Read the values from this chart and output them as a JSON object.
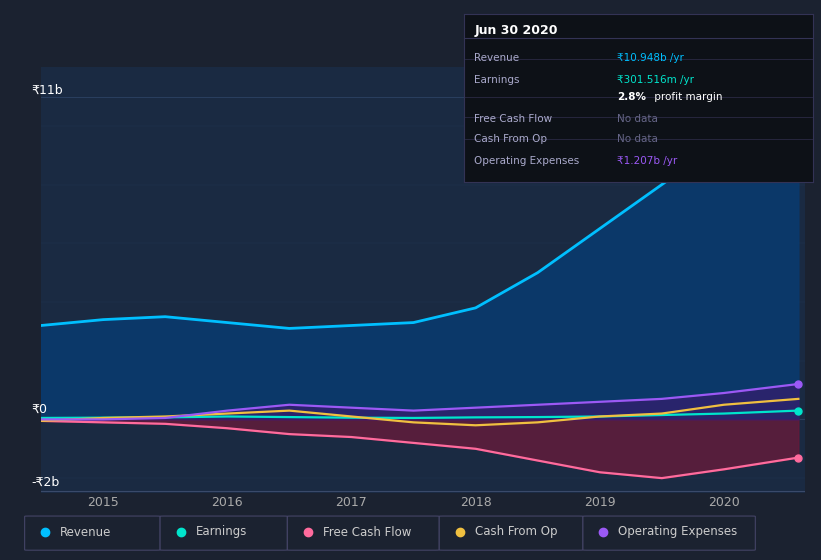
{
  "bg_color": "#1b2230",
  "plot_bg_color": "#1a2a42",
  "ylabel_top": "₹11b",
  "ylabel_zero": "₹0",
  "ylabel_bottom": "-₹2b",
  "x_years": [
    2014.5,
    2015.0,
    2015.5,
    2016.0,
    2016.5,
    2017.0,
    2017.5,
    2018.0,
    2018.5,
    2019.0,
    2019.5,
    2020.0,
    2020.6
  ],
  "revenue": [
    3.2,
    3.4,
    3.5,
    3.3,
    3.1,
    3.2,
    3.3,
    3.8,
    5.0,
    6.5,
    8.0,
    9.5,
    10.948
  ],
  "earnings": [
    0.05,
    0.06,
    0.07,
    0.1,
    0.08,
    0.06,
    0.05,
    0.07,
    0.08,
    0.1,
    0.15,
    0.2,
    0.301
  ],
  "free_cash_flow": [
    -0.05,
    -0.1,
    -0.15,
    -0.3,
    -0.5,
    -0.6,
    -0.8,
    -1.0,
    -1.4,
    -1.8,
    -2.0,
    -1.7,
    -1.3
  ],
  "cash_from_op": [
    -0.05,
    0.05,
    0.1,
    0.2,
    0.3,
    0.1,
    -0.1,
    -0.2,
    -0.1,
    0.1,
    0.2,
    0.5,
    0.7
  ],
  "op_expenses": [
    0.0,
    0.0,
    0.05,
    0.3,
    0.5,
    0.4,
    0.3,
    0.4,
    0.5,
    0.6,
    0.7,
    0.9,
    1.207
  ],
  "revenue_color": "#00bfff",
  "earnings_color": "#00e5cc",
  "fcf_color": "#ff6b9d",
  "cashop_color": "#f0c040",
  "opex_color": "#9b59f5",
  "revenue_fill_color": "#0a3a6e",
  "fcf_fill_color": "#6b1a3a",
  "opex_fill_color": "#3a1a6e",
  "ylim_min": -2.5,
  "ylim_max": 12.0,
  "grid_color": "#2a3f5f",
  "legend_items": [
    "Revenue",
    "Earnings",
    "Free Cash Flow",
    "Cash From Op",
    "Operating Expenses"
  ],
  "legend_colors": [
    "#00bfff",
    "#00e5cc",
    "#ff6b9d",
    "#f0c040",
    "#9b59f5"
  ],
  "info_box": {
    "title": "Jun 30 2020",
    "rows": [
      {
        "label": "Revenue",
        "value": "₹10.948b /yr",
        "value_color": "#00bfff",
        "bold_part": null
      },
      {
        "label": "Earnings",
        "value": "₹301.516m /yr",
        "value_color": "#00e5cc",
        "bold_part": null
      },
      {
        "label": "",
        "value": " profit margin",
        "value_color": "#ffffff",
        "bold_part": "2.8%"
      },
      {
        "label": "Free Cash Flow",
        "value": "No data",
        "value_color": "#666688",
        "bold_part": null
      },
      {
        "label": "Cash From Op",
        "value": "No data",
        "value_color": "#666688",
        "bold_part": null
      },
      {
        "label": "Operating Expenses",
        "value": "₹1.207b /yr",
        "value_color": "#9b59f5",
        "bold_part": null
      }
    ]
  }
}
